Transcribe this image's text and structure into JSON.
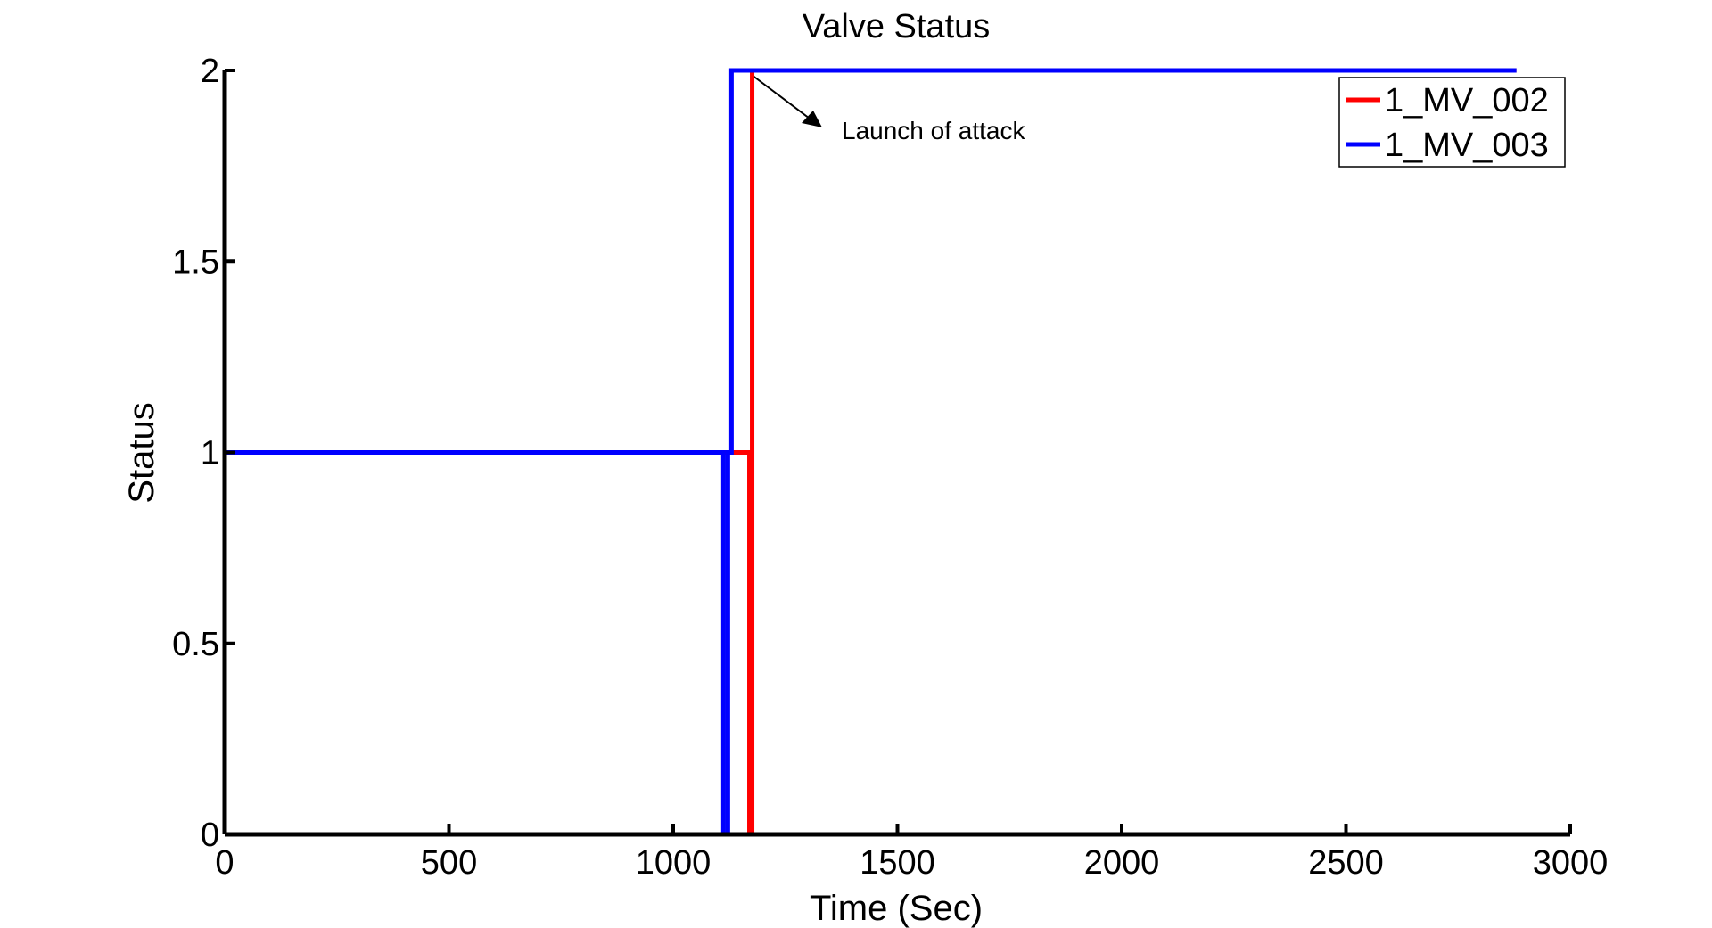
{
  "chart_data": {
    "type": "line",
    "title": "Valve Status",
    "x_label": "Time (Sec)",
    "y_label": "Status",
    "xlim": [
      0,
      3000
    ],
    "xticks": [
      0,
      500,
      1000,
      1500,
      2000,
      2500,
      3000
    ],
    "ylim": [
      0,
      2
    ],
    "yticks": [
      0,
      0.5,
      1,
      1.5,
      2
    ],
    "legend": "upper right",
    "annotation": "Launch of attack",
    "series": [
      {
        "name": "1_MV_002",
        "color": "#ff0000",
        "x": [
          0,
          1170,
          1170,
          1176,
          1176,
          2880
        ],
        "values": [
          1,
          1,
          0,
          0,
          2,
          2
        ]
      },
      {
        "name": "1_MV_003",
        "color": "#0000ff",
        "x": [
          0,
          1112,
          1112,
          1122,
          1122,
          1130,
          1130,
          2880
        ],
        "values": [
          1,
          1,
          0,
          0,
          1,
          1,
          2,
          2
        ]
      }
    ]
  }
}
